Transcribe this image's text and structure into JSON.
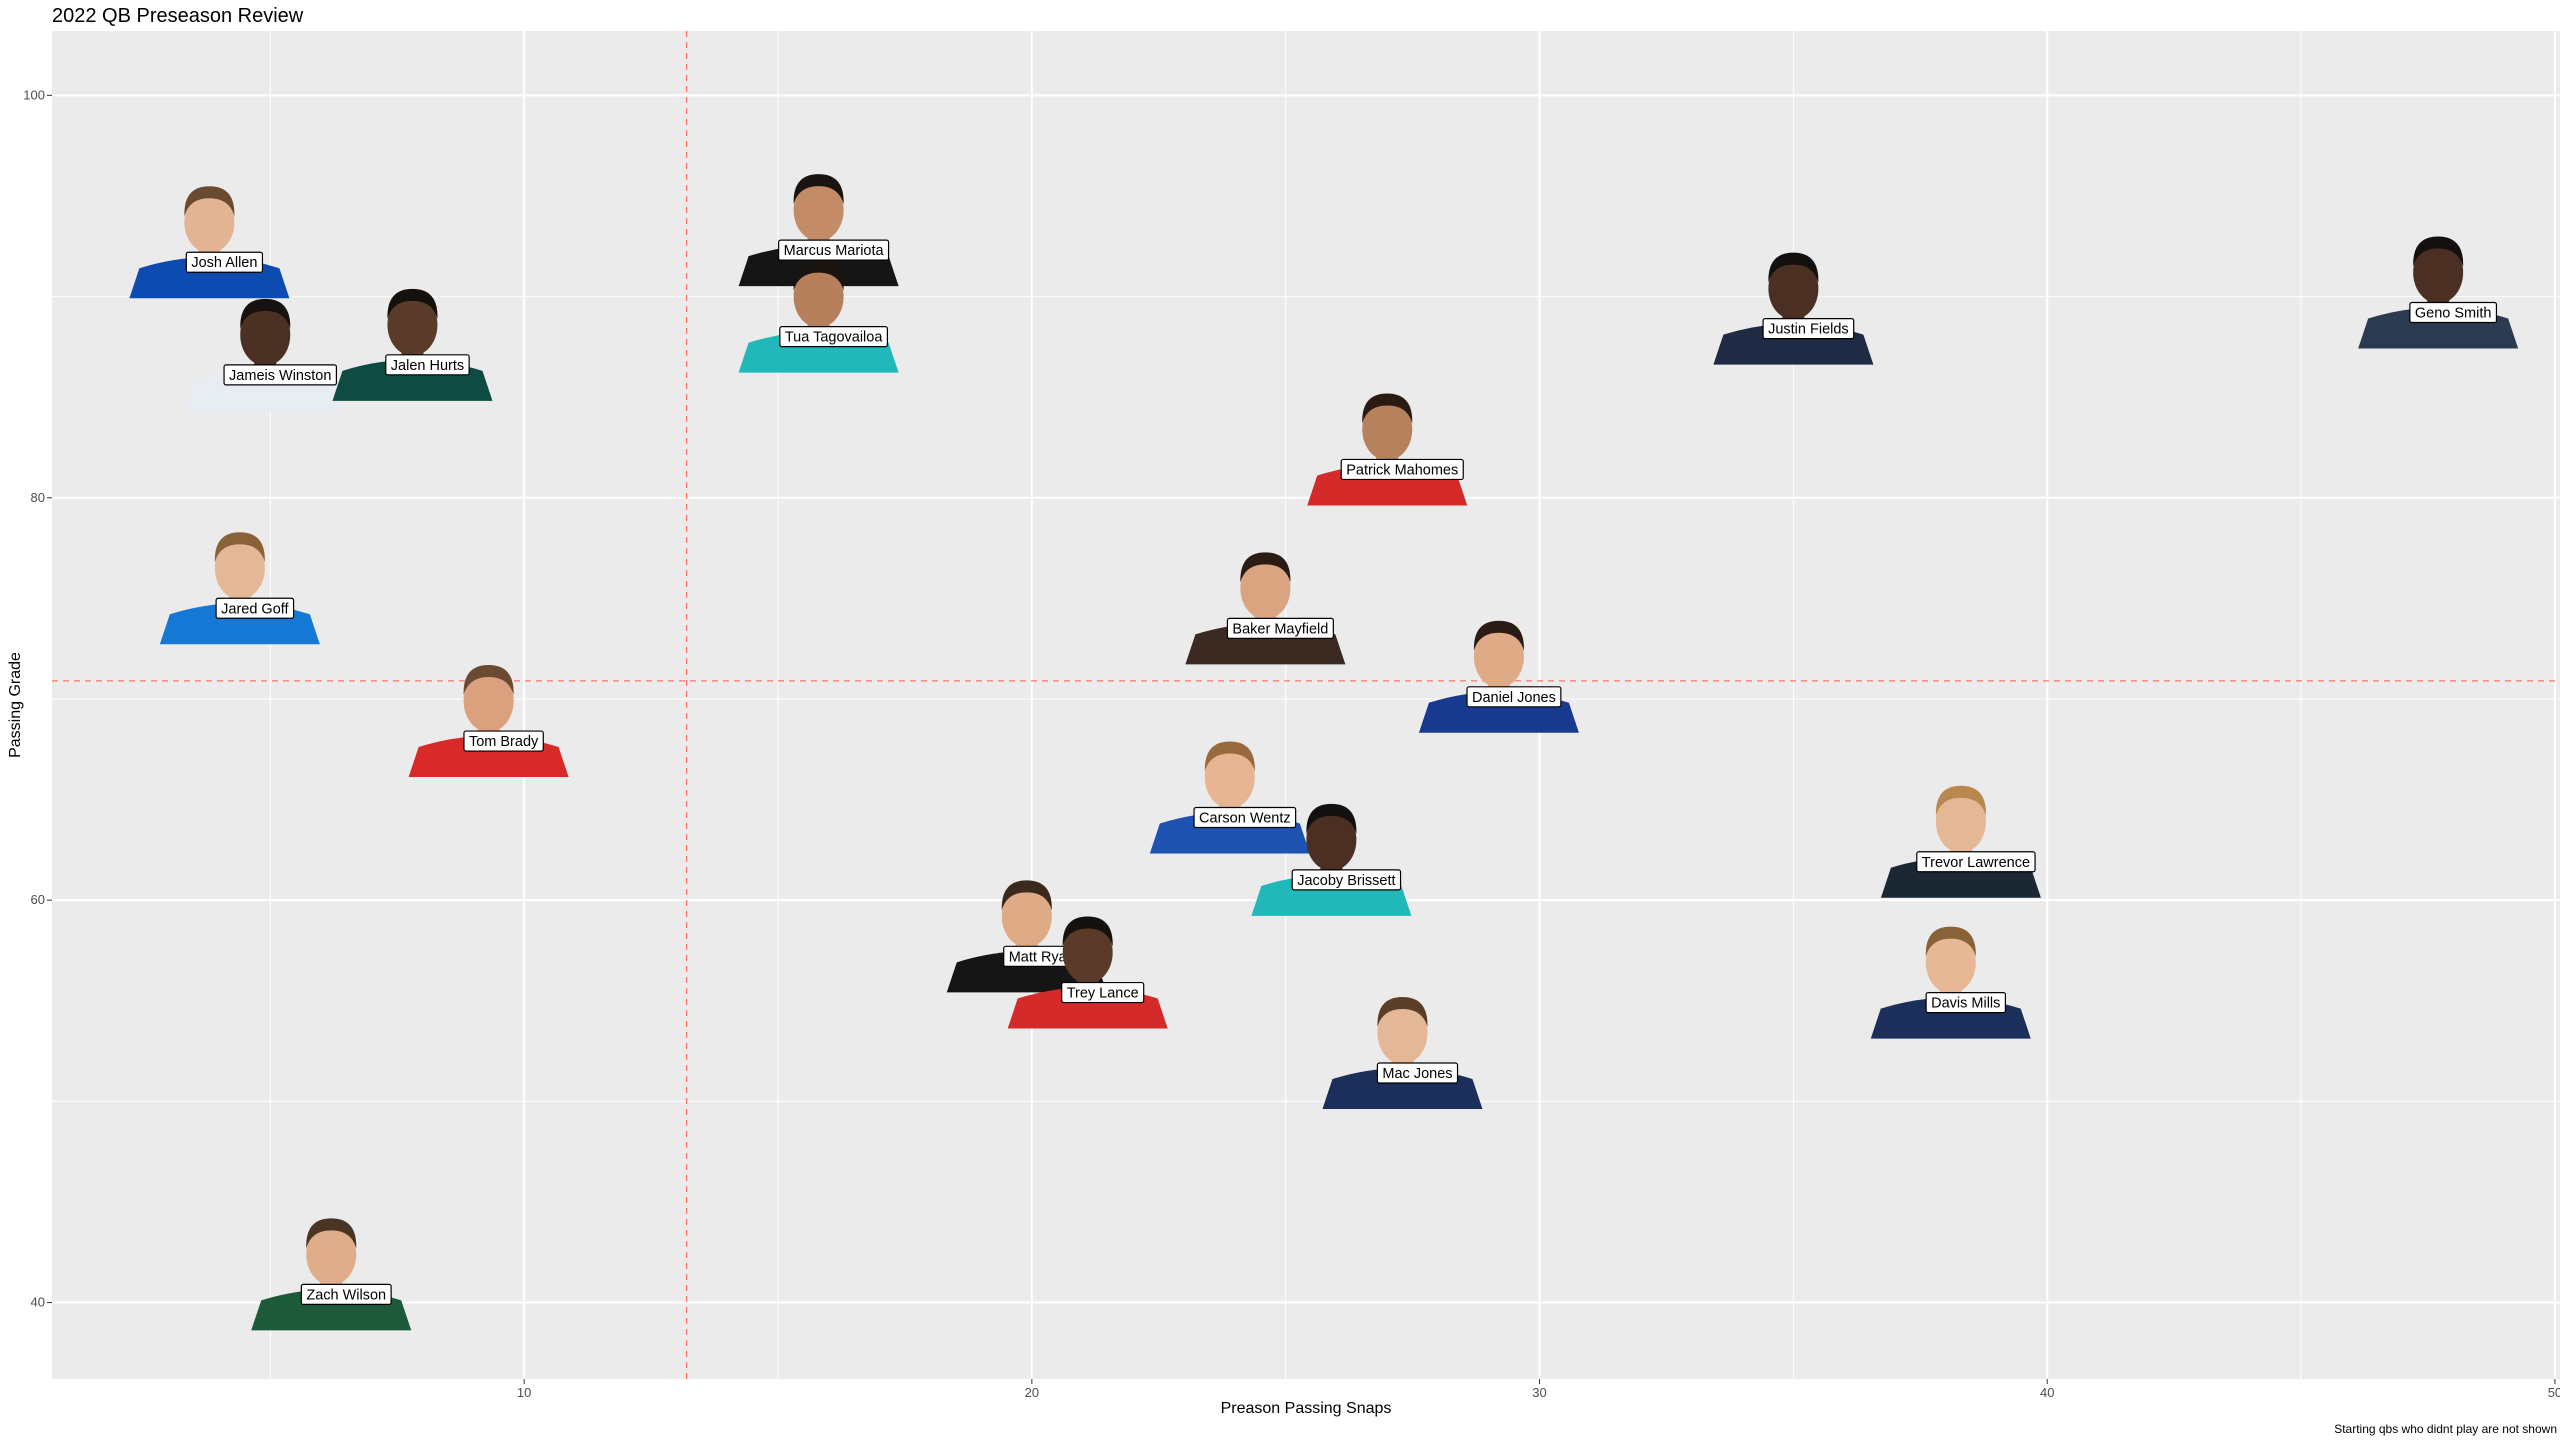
{
  "chart_data": {
    "type": "scatter",
    "title": "2022 QB Preseason Review",
    "xlabel": "Preason Passing Snaps",
    "ylabel": "Passing Grade",
    "caption": "Starting qbs who didnt play are not shown",
    "xlim": [
      0.7,
      50.1
    ],
    "ylim": [
      36.2,
      103.2
    ],
    "xticks": [
      10,
      20,
      30,
      40,
      50
    ],
    "yticks": [
      40,
      60,
      80,
      100
    ],
    "grid": true,
    "legend": "none",
    "ref_lines": {
      "x": 13.2,
      "y": 70.9,
      "color": "#f8766d"
    },
    "panel_color": "#ebebeb",
    "points": [
      {
        "name": "Josh Allen",
        "x": 3.8,
        "y": 93.0,
        "jersey": "#0e4bb1",
        "skin": "#e2b493",
        "hair": "#6a4a30"
      },
      {
        "name": "Jameis Winston",
        "x": 4.9,
        "y": 87.4,
        "jersey": "#e8ecf3",
        "skin": "#4a3124",
        "hair": "#17120f"
      },
      {
        "name": "Jalen Hurts",
        "x": 7.8,
        "y": 87.9,
        "jersey": "#0d4b43",
        "skin": "#5a3a28",
        "hair": "#15110f"
      },
      {
        "name": "Marcus Mariota",
        "x": 15.8,
        "y": 93.6,
        "jersey": "#151515",
        "skin": "#c38c66",
        "hair": "#1a1410"
      },
      {
        "name": "Tua Tagovailoa",
        "x": 15.8,
        "y": 89.3,
        "jersey": "#20b8b8",
        "skin": "#b7805c",
        "hair": "#1a1410"
      },
      {
        "name": "Justin Fields",
        "x": 35.0,
        "y": 89.7,
        "jersey": "#1f2a44",
        "skin": "#4b2f22",
        "hair": "#141010"
      },
      {
        "name": "Geno Smith",
        "x": 47.7,
        "y": 90.5,
        "jersey": "#2b3a4e",
        "skin": "#4b2f22",
        "hair": "#141010"
      },
      {
        "name": "Patrick Mahomes",
        "x": 27.0,
        "y": 82.7,
        "jersey": "#d52a2a",
        "skin": "#b6825e",
        "hair": "#2a1a12"
      },
      {
        "name": "Jared Goff",
        "x": 4.4,
        "y": 75.8,
        "jersey": "#1478d4",
        "skin": "#e4b797",
        "hair": "#8a6238"
      },
      {
        "name": "Baker Mayfield",
        "x": 24.6,
        "y": 74.8,
        "jersey": "#3b2a22",
        "skin": "#d9a47f",
        "hair": "#2a1c15"
      },
      {
        "name": "Tom Brady",
        "x": 9.3,
        "y": 69.2,
        "jersey": "#d92a2a",
        "skin": "#dba07e",
        "hair": "#6a4a30"
      },
      {
        "name": "Daniel Jones",
        "x": 29.2,
        "y": 71.4,
        "jersey": "#173a8f",
        "skin": "#dfaa86",
        "hair": "#2a1c15"
      },
      {
        "name": "Carson Wentz",
        "x": 23.9,
        "y": 65.4,
        "jersey": "#1e52b0",
        "skin": "#e8b592",
        "hair": "#9a6a3f"
      },
      {
        "name": "Jacoby Brissett",
        "x": 25.9,
        "y": 62.3,
        "jersey": "#20b8b8",
        "skin": "#4b2f22",
        "hair": "#141010"
      },
      {
        "name": "Trevor Lawrence",
        "x": 38.3,
        "y": 63.2,
        "jersey": "#1b2733",
        "skin": "#e4b797",
        "hair": "#b9884f"
      },
      {
        "name": "Matt Ryan",
        "x": 19.9,
        "y": 58.5,
        "jersey": "#151515",
        "skin": "#dfaa86",
        "hair": "#3a2a1e"
      },
      {
        "name": "Trey Lance",
        "x": 21.1,
        "y": 56.7,
        "jersey": "#d52a2a",
        "skin": "#5a3a28",
        "hair": "#15110f"
      },
      {
        "name": "Davis Mills",
        "x": 38.1,
        "y": 56.2,
        "jersey": "#1c2f5a",
        "skin": "#e6b896",
        "hair": "#8a6238"
      },
      {
        "name": "Mac Jones",
        "x": 27.3,
        "y": 52.7,
        "jersey": "#1c2f5a",
        "skin": "#e4b797",
        "hair": "#5a3e28"
      },
      {
        "name": "Zach Wilson",
        "x": 6.2,
        "y": 41.7,
        "jersey": "#1d5a3a",
        "skin": "#e0ad8a",
        "hair": "#4a3424"
      }
    ]
  }
}
